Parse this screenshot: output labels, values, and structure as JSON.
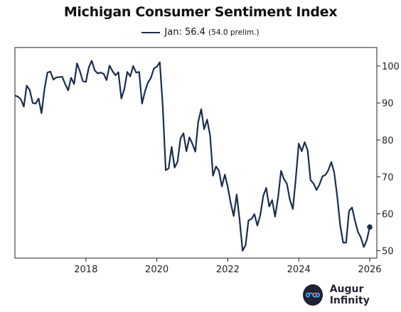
{
  "chart_data": {
    "type": "line",
    "title": "Michigan Consumer Sentiment Index",
    "legend": {
      "label": "Jan: 56.4",
      "note": "(54.0 prelim.)"
    },
    "xlabel": "",
    "ylabel": "",
    "xlim": [
      2016.0,
      2026.2
    ],
    "ylim": [
      48,
      105
    ],
    "x_ticks": [
      2018,
      2020,
      2022,
      2024,
      2026
    ],
    "y_ticks": [
      50,
      60,
      70,
      80,
      90,
      100
    ],
    "grid": false,
    "legend_position": "top-center",
    "y_axis_side": "right",
    "color": "#1b2d4f",
    "series": [
      {
        "name": "Jan: 56.4",
        "start": "2016-01",
        "frequency": "monthly",
        "values": [
          92.0,
          91.7,
          91.0,
          89.0,
          94.7,
          93.5,
          90.0,
          89.8,
          91.2,
          87.2,
          93.8,
          98.2,
          98.5,
          96.3,
          96.9,
          97.0,
          97.1,
          95.1,
          93.4,
          96.8,
          95.1,
          100.7,
          98.5,
          95.9,
          95.7,
          99.7,
          101.4,
          98.8,
          98.0,
          98.2,
          97.9,
          96.2,
          100.1,
          98.6,
          97.5,
          98.3,
          91.2,
          93.8,
          98.4,
          97.2,
          100.0,
          98.2,
          98.4,
          89.8,
          93.2,
          95.5,
          96.8,
          99.3,
          99.8,
          101.0,
          89.1,
          71.8,
          72.3,
          78.1,
          72.5,
          74.1,
          80.4,
          81.8,
          76.9,
          80.7,
          79.0,
          76.8,
          84.9,
          88.3,
          82.9,
          85.5,
          81.2,
          70.3,
          72.8,
          71.7,
          67.4,
          70.6,
          67.2,
          62.8,
          59.4,
          65.2,
          58.4,
          50.0,
          51.5,
          58.2,
          58.6,
          59.9,
          56.8,
          59.7,
          64.9,
          67.0,
          62.0,
          63.7,
          59.2,
          64.4,
          71.6,
          69.4,
          68.1,
          63.8,
          61.3,
          69.7,
          79.0,
          76.9,
          79.4,
          77.2,
          69.1,
          68.2,
          66.4,
          67.9,
          70.1,
          70.5,
          71.8,
          74.0,
          71.1,
          64.7,
          57.0,
          52.2,
          52.2,
          60.7,
          61.7,
          58.2,
          55.1,
          53.6,
          51.0,
          52.9,
          56.4
        ]
      }
    ]
  },
  "brand": {
    "name": "Augur Infinity",
    "icon": "infinity-logo-icon"
  }
}
